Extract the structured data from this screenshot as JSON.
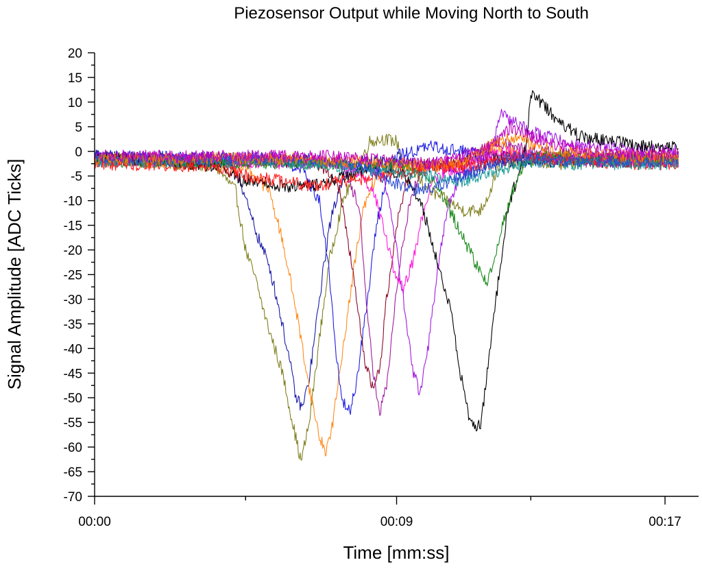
{
  "chart_data": {
    "type": "line",
    "title": "Piezosensor Output while Moving North to South",
    "xlabel": "Time [mm:ss]",
    "ylabel": "Signal Amplitude [ADC Ticks]",
    "xlim": [
      0,
      18
    ],
    "ylim": [
      -70,
      20
    ],
    "x_ticks": [
      {
        "value": 0,
        "label": "00:00"
      },
      {
        "value": 9,
        "label": "00:09"
      },
      {
        "value": 17,
        "label": "00:17"
      }
    ],
    "y_ticks": [
      20,
      15,
      10,
      5,
      0,
      -5,
      -10,
      -15,
      -20,
      -25,
      -30,
      -35,
      -40,
      -45,
      -50,
      -55,
      -60,
      -65,
      -70
    ],
    "grid": false,
    "legend": "none",
    "series": [
      {
        "color": "#808020",
        "points": [
          [
            0,
            -1.5
          ],
          [
            3.6,
            -3
          ],
          [
            4.2,
            -8
          ],
          [
            4.5,
            -20
          ],
          [
            4.8,
            -26
          ],
          [
            5.1,
            -34
          ],
          [
            5.6,
            -45
          ],
          [
            5.9,
            -55
          ],
          [
            6.15,
            -63
          ],
          [
            6.4,
            -55
          ],
          [
            6.7,
            -38
          ],
          [
            7,
            -22
          ],
          [
            7.4,
            -10
          ],
          [
            7.8,
            -4
          ],
          [
            8.2,
            2
          ],
          [
            8.6,
            2.5
          ],
          [
            9.0,
            2
          ],
          [
            9.2,
            -2
          ],
          [
            9.6,
            -5
          ],
          [
            10,
            -8
          ],
          [
            10.5,
            -10
          ],
          [
            11,
            -12
          ],
          [
            11.5,
            -12
          ],
          [
            11.8,
            -8
          ],
          [
            12,
            -3
          ],
          [
            13,
            -2
          ],
          [
            14,
            -2.5
          ],
          [
            15,
            -2
          ],
          [
            16,
            -2
          ],
          [
            17.4,
            -2
          ]
        ]
      },
      {
        "color": "#1a1aa6",
        "points": [
          [
            0,
            -1
          ],
          [
            3.8,
            -2
          ],
          [
            4.3,
            -5
          ],
          [
            4.6,
            -12
          ],
          [
            4.9,
            -18
          ],
          [
            5.2,
            -23
          ],
          [
            5.5,
            -32
          ],
          [
            5.8,
            -42
          ],
          [
            6.0,
            -50
          ],
          [
            6.2,
            -52
          ],
          [
            6.4,
            -46
          ],
          [
            6.7,
            -30
          ],
          [
            7,
            -15
          ],
          [
            7.4,
            -5
          ],
          [
            8,
            -2
          ],
          [
            9,
            -2
          ],
          [
            10,
            -3
          ],
          [
            11,
            -4
          ],
          [
            12,
            -2
          ],
          [
            13,
            -2
          ],
          [
            14,
            -2
          ],
          [
            15,
            -2
          ],
          [
            16,
            -2
          ],
          [
            17.4,
            -2
          ]
        ]
      },
      {
        "color": "#ff8a1c",
        "points": [
          [
            0,
            -1.5
          ],
          [
            4.5,
            -3
          ],
          [
            5.2,
            -8
          ],
          [
            5.6,
            -18
          ],
          [
            6.0,
            -32
          ],
          [
            6.4,
            -48
          ],
          [
            6.7,
            -58
          ],
          [
            6.9,
            -61
          ],
          [
            7.1,
            -55
          ],
          [
            7.4,
            -40
          ],
          [
            7.7,
            -25
          ],
          [
            8.0,
            -12
          ],
          [
            8.4,
            -5
          ],
          [
            9,
            -3
          ],
          [
            10,
            -3
          ],
          [
            11,
            -3
          ],
          [
            12,
            1
          ],
          [
            13,
            -1
          ],
          [
            14,
            -1.5
          ],
          [
            15,
            -1.5
          ],
          [
            16,
            -1.5
          ],
          [
            17.4,
            -1.5
          ]
        ]
      },
      {
        "color": "#1e1ee0",
        "points": [
          [
            0,
            -1
          ],
          [
            5.5,
            -1.5
          ],
          [
            6.2,
            -4
          ],
          [
            6.7,
            -10
          ],
          [
            7.0,
            -25
          ],
          [
            7.2,
            -42
          ],
          [
            7.4,
            -51
          ],
          [
            7.6,
            -53
          ],
          [
            7.8,
            -47
          ],
          [
            8.1,
            -32
          ],
          [
            8.4,
            -15
          ],
          [
            8.7,
            -5
          ],
          [
            9,
            -1
          ],
          [
            9.5,
            0
          ],
          [
            10,
            1
          ],
          [
            11,
            0
          ],
          [
            12,
            -1
          ],
          [
            13,
            -1.5
          ],
          [
            14,
            -1.5
          ],
          [
            15,
            -1.5
          ],
          [
            16,
            -1.5
          ],
          [
            17.4,
            -1.5
          ]
        ]
      },
      {
        "color": "#8b0a2a",
        "points": [
          [
            0,
            -1.5
          ],
          [
            6.5,
            -2
          ],
          [
            7.0,
            -4
          ],
          [
            7.3,
            -8
          ],
          [
            7.6,
            -20
          ],
          [
            7.9,
            -35
          ],
          [
            8.1,
            -44
          ],
          [
            8.3,
            -48
          ],
          [
            8.5,
            -44
          ],
          [
            8.7,
            -30
          ],
          [
            9.0,
            -15
          ],
          [
            9.3,
            -6
          ],
          [
            9.6,
            -3
          ],
          [
            10,
            -2.5
          ],
          [
            11,
            -2
          ],
          [
            12,
            -1
          ],
          [
            13,
            -1.5
          ],
          [
            14,
            -1.5
          ],
          [
            15,
            -1.5
          ],
          [
            16,
            -1.5
          ],
          [
            17.4,
            -1.5
          ]
        ]
      },
      {
        "color": "#a01a9e",
        "points": [
          [
            0,
            -1.5
          ],
          [
            7.0,
            -2
          ],
          [
            7.5,
            -4
          ],
          [
            7.9,
            -12
          ],
          [
            8.1,
            -30
          ],
          [
            8.3,
            -45
          ],
          [
            8.5,
            -53
          ],
          [
            8.7,
            -48
          ],
          [
            8.9,
            -35
          ],
          [
            9.1,
            -22
          ],
          [
            9.4,
            -10
          ],
          [
            9.7,
            -4
          ],
          [
            10,
            -3
          ],
          [
            11,
            -2.5
          ],
          [
            12,
            2
          ],
          [
            13,
            0
          ],
          [
            14,
            -0.5
          ],
          [
            15,
            -1
          ],
          [
            16,
            -1
          ],
          [
            17.4,
            -1
          ]
        ]
      },
      {
        "color": "#ff1ad9",
        "points": [
          [
            0,
            -2
          ],
          [
            7.4,
            -2.5
          ],
          [
            8.0,
            -5
          ],
          [
            8.4,
            -10
          ],
          [
            8.7,
            -18
          ],
          [
            9.0,
            -26
          ],
          [
            9.2,
            -28
          ],
          [
            9.5,
            -22
          ],
          [
            9.8,
            -12
          ],
          [
            10.1,
            -6
          ],
          [
            10.5,
            -4
          ],
          [
            11,
            -3.5
          ],
          [
            12,
            0
          ],
          [
            13,
            -1
          ],
          [
            14,
            -1.5
          ],
          [
            15,
            -2
          ],
          [
            16,
            -2
          ],
          [
            17.4,
            -2
          ]
        ]
      },
      {
        "color": "#a21ae0",
        "points": [
          [
            0,
            -1.5
          ],
          [
            8.0,
            -2
          ],
          [
            8.6,
            -5
          ],
          [
            8.9,
            -15
          ],
          [
            9.2,
            -30
          ],
          [
            9.5,
            -45
          ],
          [
            9.7,
            -49
          ],
          [
            9.9,
            -42
          ],
          [
            10.2,
            -25
          ],
          [
            10.5,
            -12
          ],
          [
            10.9,
            -5
          ],
          [
            11.4,
            -2
          ],
          [
            11.8,
            0
          ],
          [
            12.1,
            8
          ],
          [
            12.5,
            6
          ],
          [
            13,
            4
          ],
          [
            14,
            2
          ],
          [
            15,
            1
          ],
          [
            16,
            0.5
          ],
          [
            17.4,
            0
          ]
        ]
      },
      {
        "color": "#000000",
        "points": [
          [
            0,
            -1
          ],
          [
            3.8,
            -3
          ],
          [
            4.4,
            -6
          ],
          [
            5.0,
            -6
          ],
          [
            5.6,
            -7
          ],
          [
            6.5,
            -7
          ],
          [
            7.5,
            -5
          ],
          [
            8.5,
            -3
          ],
          [
            9.3,
            -5
          ],
          [
            9.8,
            -12
          ],
          [
            10.2,
            -22
          ],
          [
            10.6,
            -32
          ],
          [
            10.9,
            -45
          ],
          [
            11.2,
            -55
          ],
          [
            11.5,
            -56
          ],
          [
            11.7,
            -45
          ],
          [
            12.0,
            -28
          ],
          [
            12.3,
            -12
          ],
          [
            12.7,
            -3
          ],
          [
            12.9,
            3
          ],
          [
            13.0,
            12
          ],
          [
            13.3,
            10
          ],
          [
            13.8,
            6
          ],
          [
            14.5,
            3
          ],
          [
            15.5,
            2
          ],
          [
            16.5,
            1
          ],
          [
            17.4,
            1
          ]
        ]
      },
      {
        "color": "#1a8a1a",
        "points": [
          [
            0,
            -2
          ],
          [
            9.0,
            -2.5
          ],
          [
            9.8,
            -4
          ],
          [
            10.3,
            -8
          ],
          [
            10.8,
            -15
          ],
          [
            11.3,
            -22
          ],
          [
            11.7,
            -27
          ],
          [
            11.9,
            -22
          ],
          [
            12.2,
            -14
          ],
          [
            12.5,
            -7
          ],
          [
            12.8,
            -3
          ],
          [
            13.2,
            -1
          ],
          [
            14,
            -1
          ],
          [
            15,
            -1.5
          ],
          [
            16,
            -2
          ],
          [
            17.4,
            -2
          ]
        ]
      },
      {
        "color": "#ff1a1a",
        "points": [
          [
            0,
            -2.5
          ],
          [
            3.5,
            -3
          ],
          [
            4.5,
            -5
          ],
          [
            5.5,
            -6
          ],
          [
            6.5,
            -7
          ],
          [
            7.5,
            -6
          ],
          [
            8.5,
            -5
          ],
          [
            9.5,
            -4
          ],
          [
            10.5,
            -3
          ],
          [
            11.5,
            -3
          ],
          [
            12.5,
            -1
          ],
          [
            13.5,
            -1.5
          ],
          [
            14.5,
            -2
          ],
          [
            15.5,
            -2.5
          ],
          [
            16.5,
            -2.5
          ],
          [
            17.4,
            -2.5
          ]
        ]
      },
      {
        "color": "#1a9a9a",
        "points": [
          [
            0,
            -2
          ],
          [
            5,
            -2
          ],
          [
            6,
            -2.5
          ],
          [
            7,
            -3
          ],
          [
            8,
            -3.5
          ],
          [
            9,
            -4
          ],
          [
            10,
            -5
          ],
          [
            11,
            -6
          ],
          [
            12,
            -4
          ],
          [
            13,
            -2
          ],
          [
            14,
            -2.5
          ],
          [
            15,
            -2.5
          ],
          [
            16,
            -2.5
          ],
          [
            17.4,
            -2.5
          ]
        ]
      },
      {
        "color": "#2a4ad0",
        "points": [
          [
            0,
            -1.5
          ],
          [
            6,
            -1.5
          ],
          [
            7,
            -2
          ],
          [
            8,
            -3
          ],
          [
            8.8,
            -6
          ],
          [
            9.5,
            -8
          ],
          [
            10.3,
            -7
          ],
          [
            11.0,
            -5
          ],
          [
            11.8,
            -3
          ],
          [
            12.5,
            -1
          ],
          [
            13.5,
            -1.5
          ],
          [
            14.5,
            -2
          ],
          [
            15.5,
            -2
          ],
          [
            17.4,
            -2
          ]
        ]
      },
      {
        "color": "#ff7a00",
        "points": [
          [
            0,
            -1.5
          ],
          [
            6,
            -1.5
          ],
          [
            7,
            -2
          ],
          [
            8,
            -2
          ],
          [
            9,
            -2.5
          ],
          [
            10,
            -3
          ],
          [
            11,
            -2
          ],
          [
            12,
            2
          ],
          [
            12.6,
            3
          ],
          [
            13.2,
            1
          ],
          [
            14,
            0
          ],
          [
            15,
            -0.5
          ],
          [
            16,
            -1
          ],
          [
            17.4,
            -1
          ]
        ]
      },
      {
        "color": "#c000c0",
        "points": [
          [
            0,
            -1
          ],
          [
            7,
            -1
          ],
          [
            8,
            -1.5
          ],
          [
            9,
            -2
          ],
          [
            10,
            -2.5
          ],
          [
            11,
            -1
          ],
          [
            12,
            2
          ],
          [
            12.4,
            5
          ],
          [
            13,
            3
          ],
          [
            14,
            1
          ],
          [
            15,
            0
          ],
          [
            16,
            -0.5
          ],
          [
            17.4,
            -0.5
          ]
        ]
      }
    ]
  }
}
